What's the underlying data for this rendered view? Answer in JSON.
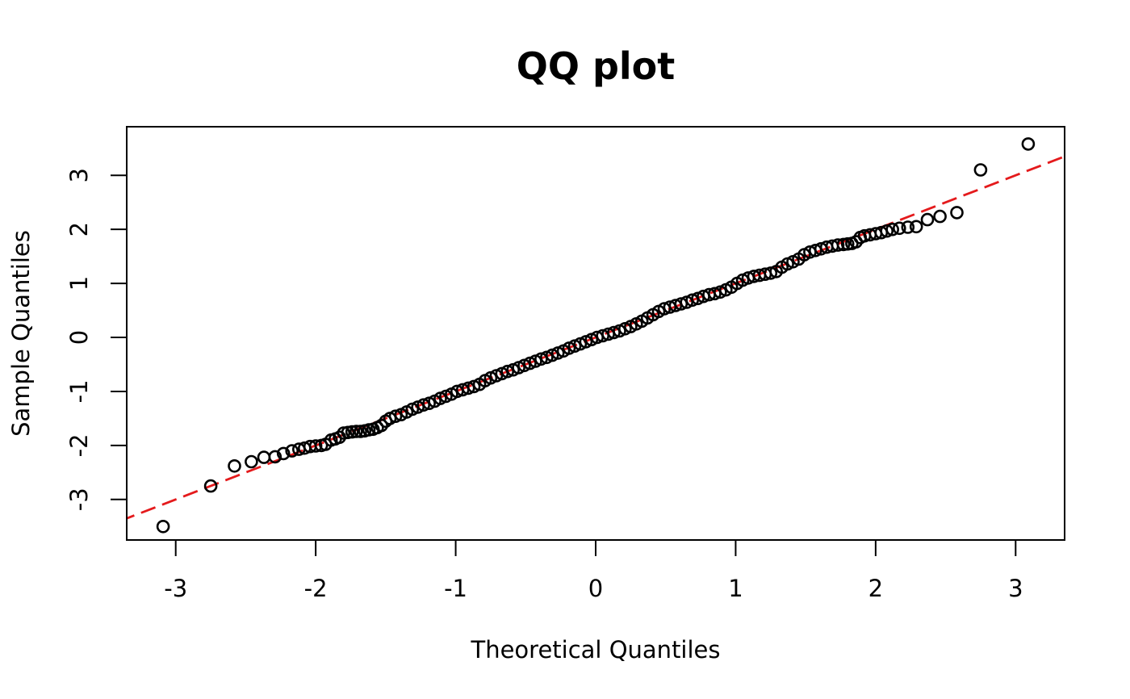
{
  "chart_data": {
    "type": "scatter",
    "title": "QQ plot",
    "xlabel": "Theoretical Quantiles",
    "ylabel": "Sample Quantiles",
    "xlim": [
      -3.35,
      3.35
    ],
    "ylim": [
      -3.75,
      3.9
    ],
    "x_ticks": [
      -3,
      -2,
      -1,
      0,
      1,
      2,
      3
    ],
    "x_tick_labels": [
      "-3",
      "-2",
      "-1",
      "0",
      "1",
      "2",
      "3"
    ],
    "y_ticks": [
      -3,
      -2,
      -1,
      0,
      1,
      2,
      3
    ],
    "y_tick_labels": [
      "-3",
      "-2",
      "-1",
      "0",
      "1",
      "2",
      "3"
    ],
    "grid": false,
    "legend": false,
    "point_color": "#000000",
    "reference_line": {
      "style": "dashed",
      "color": "#e41a1c",
      "intercept": 0.0,
      "slope": 1.0
    },
    "series": [
      {
        "points": [
          [
            -3.09,
            -3.5
          ],
          [
            -2.75,
            -2.75
          ],
          [
            -2.58,
            -2.38
          ],
          [
            -2.46,
            -2.3
          ],
          [
            -2.37,
            -2.22
          ],
          [
            -2.29,
            -2.21
          ],
          [
            -2.23,
            -2.15
          ],
          [
            -2.17,
            -2.1
          ],
          [
            -2.12,
            -2.07
          ],
          [
            -2.08,
            -2.05
          ],
          [
            -2.04,
            -2.02
          ],
          [
            -2.0,
            -2.01
          ],
          [
            -1.96,
            -2.0
          ],
          [
            -1.93,
            -1.98
          ],
          [
            -1.89,
            -1.9
          ],
          [
            -1.86,
            -1.88
          ],
          [
            -1.83,
            -1.85
          ],
          [
            -1.8,
            -1.77
          ],
          [
            -1.77,
            -1.76
          ],
          [
            -1.74,
            -1.75
          ],
          [
            -1.71,
            -1.74
          ],
          [
            -1.68,
            -1.74
          ],
          [
            -1.65,
            -1.73
          ],
          [
            -1.62,
            -1.71
          ],
          [
            -1.59,
            -1.7
          ],
          [
            -1.56,
            -1.67
          ],
          [
            -1.53,
            -1.63
          ],
          [
            -1.5,
            -1.55
          ],
          [
            -1.47,
            -1.5
          ],
          [
            -1.43,
            -1.46
          ],
          [
            -1.39,
            -1.43
          ],
          [
            -1.35,
            -1.38
          ],
          [
            -1.31,
            -1.33
          ],
          [
            -1.27,
            -1.29
          ],
          [
            -1.23,
            -1.25
          ],
          [
            -1.19,
            -1.22
          ],
          [
            -1.15,
            -1.18
          ],
          [
            -1.11,
            -1.13
          ],
          [
            -1.07,
            -1.09
          ],
          [
            -1.03,
            -1.05
          ],
          [
            -0.99,
            -1.0
          ],
          [
            -0.95,
            -0.97
          ],
          [
            -0.91,
            -0.94
          ],
          [
            -0.87,
            -0.91
          ],
          [
            -0.83,
            -0.87
          ],
          [
            -0.79,
            -0.8
          ],
          [
            -0.75,
            -0.75
          ],
          [
            -0.71,
            -0.71
          ],
          [
            -0.67,
            -0.67
          ],
          [
            -0.63,
            -0.63
          ],
          [
            -0.59,
            -0.6
          ],
          [
            -0.55,
            -0.56
          ],
          [
            -0.51,
            -0.52
          ],
          [
            -0.47,
            -0.48
          ],
          [
            -0.43,
            -0.44
          ],
          [
            -0.39,
            -0.4
          ],
          [
            -0.35,
            -0.37
          ],
          [
            -0.31,
            -0.33
          ],
          [
            -0.27,
            -0.29
          ],
          [
            -0.23,
            -0.25
          ],
          [
            -0.19,
            -0.2
          ],
          [
            -0.15,
            -0.16
          ],
          [
            -0.11,
            -0.12
          ],
          [
            -0.07,
            -0.08
          ],
          [
            -0.03,
            -0.04
          ],
          [
            0.01,
            0.0
          ],
          [
            0.05,
            0.03
          ],
          [
            0.09,
            0.06
          ],
          [
            0.13,
            0.09
          ],
          [
            0.17,
            0.12
          ],
          [
            0.21,
            0.16
          ],
          [
            0.25,
            0.2
          ],
          [
            0.29,
            0.25
          ],
          [
            0.33,
            0.3
          ],
          [
            0.37,
            0.36
          ],
          [
            0.41,
            0.42
          ],
          [
            0.45,
            0.48
          ],
          [
            0.49,
            0.53
          ],
          [
            0.53,
            0.56
          ],
          [
            0.57,
            0.59
          ],
          [
            0.61,
            0.62
          ],
          [
            0.65,
            0.65
          ],
          [
            0.69,
            0.69
          ],
          [
            0.73,
            0.72
          ],
          [
            0.77,
            0.76
          ],
          [
            0.81,
            0.79
          ],
          [
            0.85,
            0.81
          ],
          [
            0.89,
            0.84
          ],
          [
            0.93,
            0.88
          ],
          [
            0.97,
            0.93
          ],
          [
            1.01,
            1.0
          ],
          [
            1.05,
            1.06
          ],
          [
            1.09,
            1.1
          ],
          [
            1.13,
            1.13
          ],
          [
            1.17,
            1.15
          ],
          [
            1.21,
            1.17
          ],
          [
            1.25,
            1.19
          ],
          [
            1.29,
            1.22
          ],
          [
            1.33,
            1.3
          ],
          [
            1.37,
            1.36
          ],
          [
            1.41,
            1.4
          ],
          [
            1.45,
            1.45
          ],
          [
            1.49,
            1.53
          ],
          [
            1.53,
            1.58
          ],
          [
            1.57,
            1.61
          ],
          [
            1.61,
            1.64
          ],
          [
            1.65,
            1.67
          ],
          [
            1.69,
            1.69
          ],
          [
            1.73,
            1.71
          ],
          [
            1.77,
            1.72
          ],
          [
            1.8,
            1.73
          ],
          [
            1.83,
            1.74
          ],
          [
            1.86,
            1.77
          ],
          [
            1.89,
            1.85
          ],
          [
            1.92,
            1.88
          ],
          [
            1.96,
            1.9
          ],
          [
            2.0,
            1.92
          ],
          [
            2.04,
            1.94
          ],
          [
            2.08,
            1.97
          ],
          [
            2.12,
            2.0
          ],
          [
            2.17,
            2.02
          ],
          [
            2.23,
            2.04
          ],
          [
            2.29,
            2.05
          ],
          [
            2.37,
            2.18
          ],
          [
            2.46,
            2.24
          ],
          [
            2.58,
            2.31
          ],
          [
            2.75,
            3.1
          ],
          [
            3.09,
            3.58
          ]
        ]
      }
    ]
  }
}
